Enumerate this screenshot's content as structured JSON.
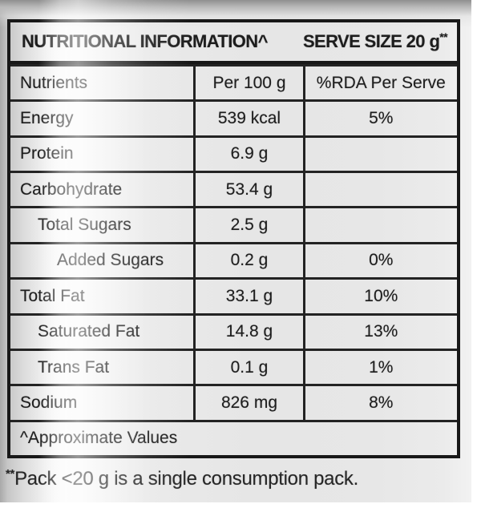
{
  "nutrition_label": {
    "header": {
      "title": "NUTRITIONAL INFORMATION^",
      "serve_size_label": "SERVE SIZE 20 g",
      "serve_size_marker": "**"
    },
    "column_headers": {
      "nutrients": "Nutrients",
      "per_100g": "Per 100 g",
      "rda_per_serve": "%RDA Per Serve"
    },
    "rows": [
      {
        "nutrient": "Energy",
        "per_100g": "539 kcal",
        "rda": "5%"
      },
      {
        "nutrient": "Protein",
        "per_100g": "6.9 g",
        "rda": ""
      },
      {
        "nutrient": "Carbohydrate",
        "per_100g": "53.4 g",
        "rda": ""
      },
      {
        "nutrient": "Total Sugars",
        "per_100g": "2.5 g",
        "rda": ""
      },
      {
        "nutrient": "Added Sugars",
        "per_100g": "0.2 g",
        "rda": "0%"
      },
      {
        "nutrient": "Total Fat",
        "per_100g": "33.1 g",
        "rda": "10%"
      },
      {
        "nutrient": "Saturated Fat",
        "per_100g": "14.8 g",
        "rda": "13%"
      },
      {
        "nutrient": "Trans Fat",
        "per_100g": "0.1 g",
        "rda": "1%"
      },
      {
        "nutrient": "Sodium",
        "per_100g": "826 mg",
        "rda": "8%"
      }
    ],
    "footer_note": "^Approximate Values",
    "footnote": {
      "marker": "**",
      "text": "Pack <20 g is a single consumption pack."
    },
    "colors": {
      "table_border": "#181818",
      "text": "#1d1d1d",
      "label_background": "#e8e8e8"
    }
  }
}
